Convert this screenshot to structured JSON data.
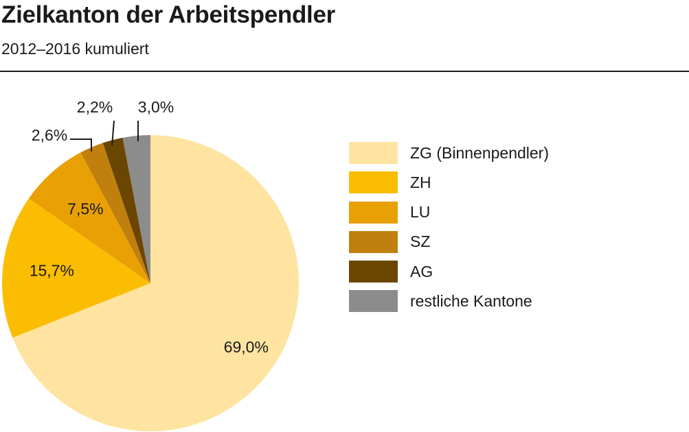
{
  "title": "Zielkanton der Arbeitspendler",
  "subtitle": "2012–2016 kumuliert",
  "chart_data": {
    "type": "pie",
    "start": "12 o'clock",
    "direction": "clockwise",
    "legend_position": "right",
    "slices": [
      {
        "name": "ZG (Binnenpendler)",
        "value": 69.0,
        "label": "69,0%",
        "color": "#fee4a0"
      },
      {
        "name": "ZH",
        "value": 15.7,
        "label": "15,7%",
        "color": "#fbbd02"
      },
      {
        "name": "LU",
        "value": 7.5,
        "label": "7,5%",
        "color": "#e8a004"
      },
      {
        "name": "SZ",
        "value": 2.6,
        "label": "2,6%",
        "color": "#c17f0e"
      },
      {
        "name": "AG",
        "value": 2.2,
        "label": "2,2%",
        "color": "#6b4600"
      },
      {
        "name": "restliche Kantone",
        "value": 3.0,
        "label": "3,0%",
        "color": "#8c8c8c"
      }
    ]
  }
}
